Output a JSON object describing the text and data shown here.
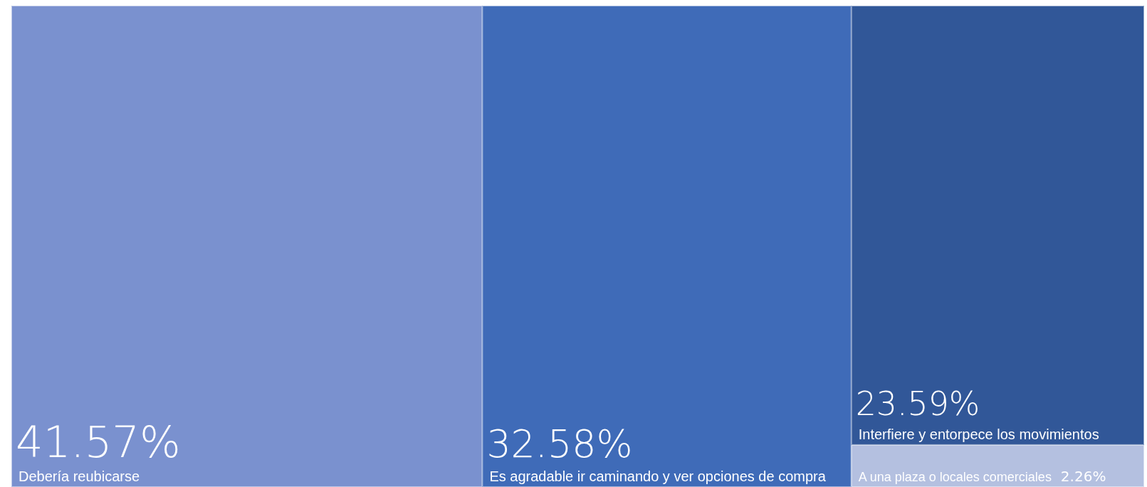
{
  "chart_data": {
    "type": "other",
    "categories": [
      "Debería reubicarse",
      "Es agradable ir caminando y ver opciones de compra",
      "Interfiere y entorpece los movimientos",
      "A una plaza o locales comerciales"
    ],
    "values": [
      41.57,
      32.58,
      23.59,
      2.26
    ],
    "value_labels": [
      "41.57%",
      "32.58%",
      "23.59%",
      "2.26%"
    ],
    "colors": [
      "#7a91cf",
      "#3f6bb8",
      "#315798",
      "#b4c0e0"
    ]
  }
}
